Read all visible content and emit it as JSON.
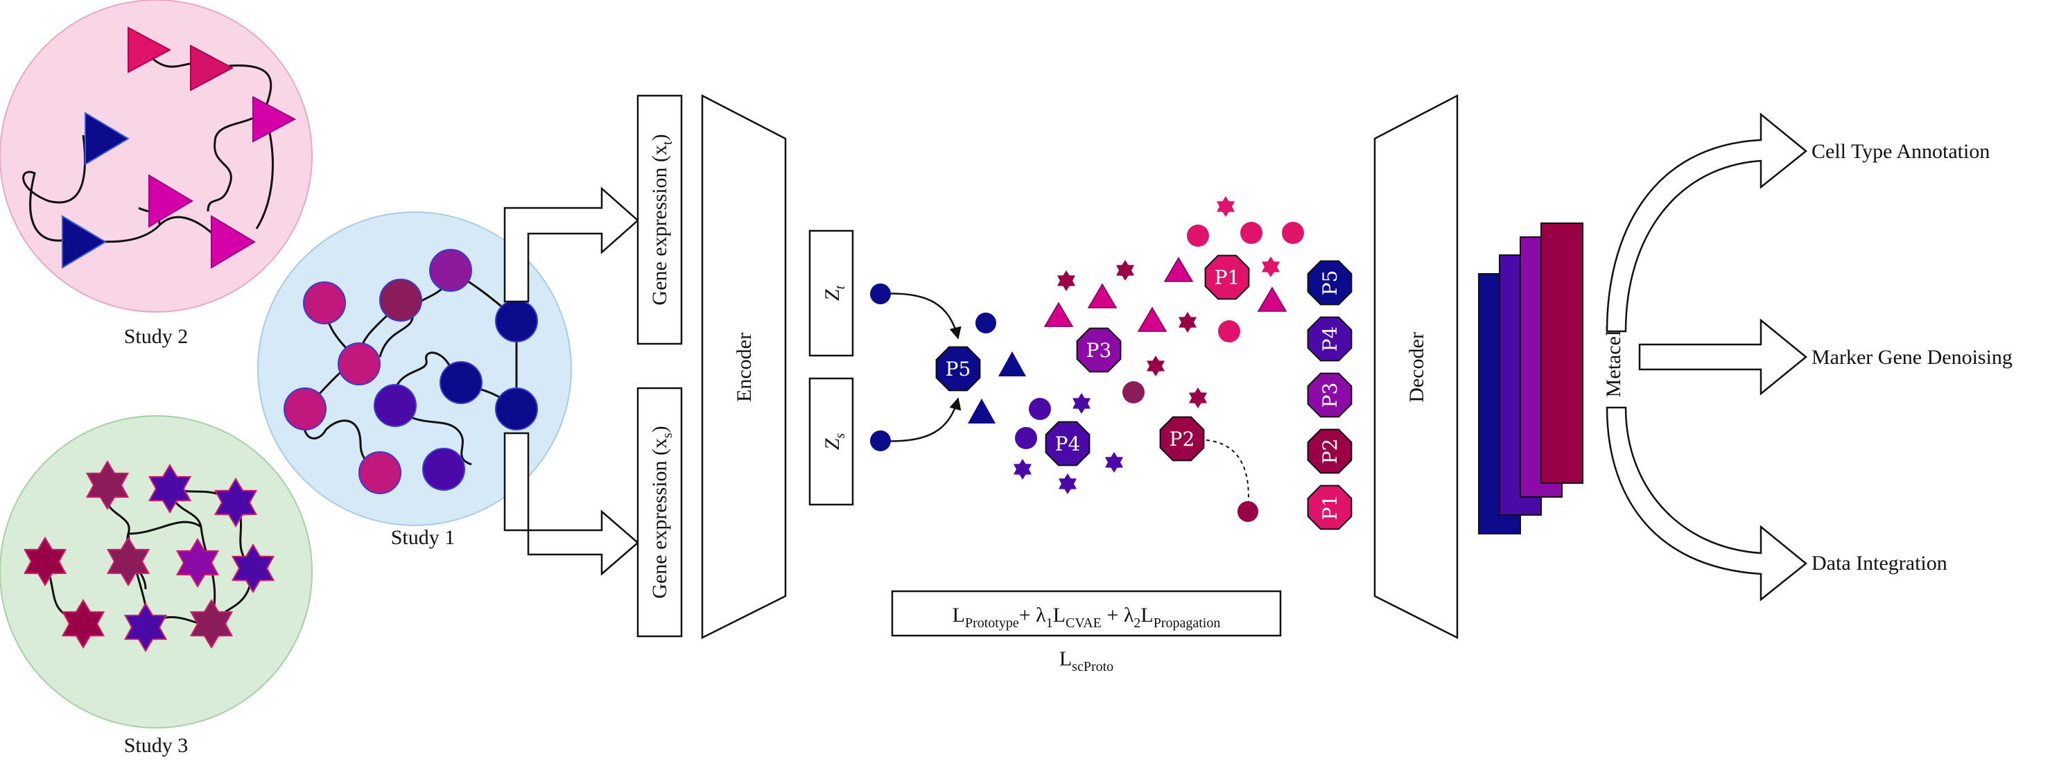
{
  "studies": {
    "study1": "Study 1",
    "study2": "Study 2",
    "study3": "Study 3"
  },
  "inputs": {
    "target": {
      "text": "Gene expression (x",
      "sub": "t",
      "close": ")"
    },
    "source": {
      "text": "Gene expression (x",
      "sub": "s",
      "close": ")"
    }
  },
  "encoder": "Encoder",
  "decoder": "Decoder",
  "latent": {
    "zt": {
      "main": "Z",
      "sub": "t"
    },
    "zs": {
      "main": "Z",
      "sub": "s"
    }
  },
  "prototypes": [
    "P1",
    "P2",
    "P3",
    "P4",
    "P5"
  ],
  "loss": {
    "l1": "L",
    "s1": "Prototype",
    "plus1": "+ ",
    "lam1": "λ",
    "lam1sub": "1",
    "l2": "L",
    "s2": "CVAE",
    "plus2": " + ",
    "lam2": "λ",
    "lam2sub": "2",
    "l3": "L",
    "s3": "Propagation",
    "name": "L",
    "name_sub": "scProto"
  },
  "metacells": "Metacells",
  "outputs": {
    "annotation": "Cell Type Annotation",
    "denoising": "Marker Gene Denoising",
    "integration": "Data Integration"
  },
  "colors": {
    "study1_bg": "#d6e9f6",
    "study2_bg": "#f8d6e6",
    "study3_bg": "#d8ecd7",
    "navy": "#0b0b8c",
    "indigo": "#4b0aa8",
    "purple": "#8c0aa6",
    "plum": "#8a1c5a",
    "crimson": "#9a0046",
    "magenta": "#d4008a",
    "pink": "#e0136b"
  }
}
